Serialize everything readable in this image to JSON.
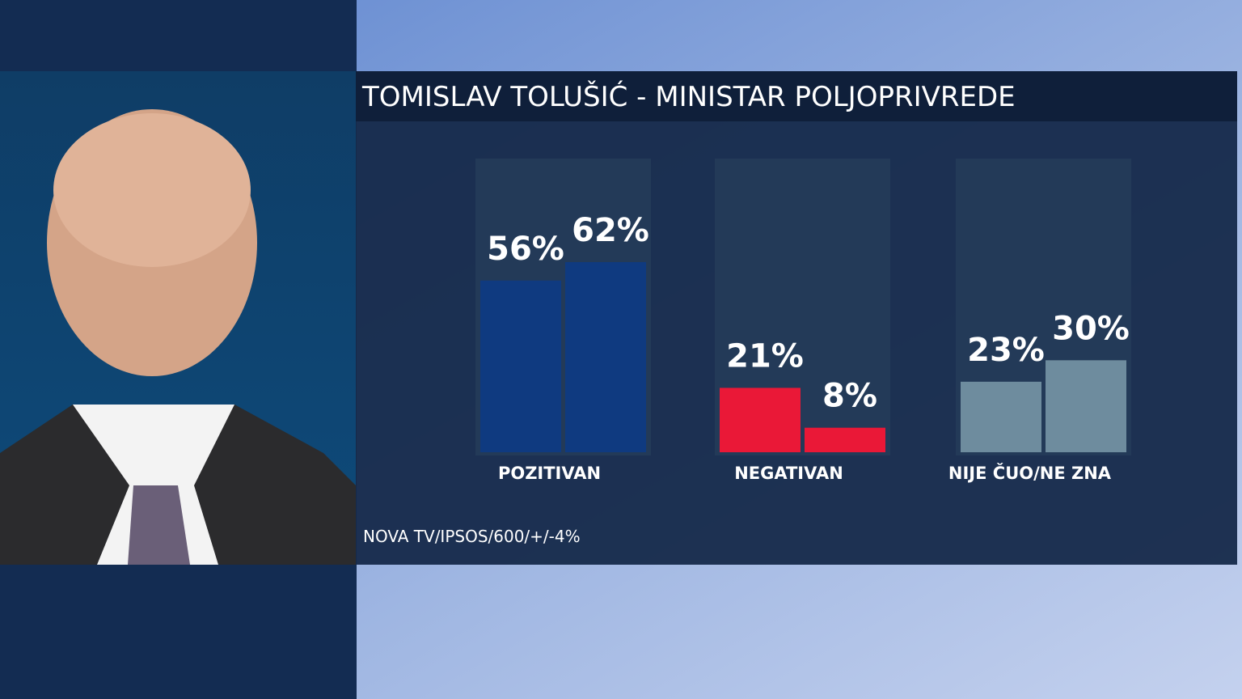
{
  "chart_data": {
    "type": "bar",
    "title": "TOMISLAV TOLUŠIĆ - MINISTAR POLJOPRIVREDE",
    "categories": [
      "POZITIVAN",
      "NEGATIVAN",
      "NIJE ČUO/NE ZNA"
    ],
    "series": [
      {
        "values": [
          56,
          21,
          23
        ],
        "value_labels": [
          "56%",
          "21%",
          "23%"
        ],
        "colors": [
          "#0f3a80",
          "#ea1837",
          "#6e8c9e"
        ]
      },
      {
        "values": [
          62,
          8,
          30
        ],
        "value_labels": [
          "62%",
          "8%",
          "30%"
        ],
        "colors": [
          "#0f3a80",
          "#ea1837",
          "#6e8c9e"
        ]
      }
    ],
    "note": "NOVA TV/IPSOS/600/+/-4%"
  }
}
